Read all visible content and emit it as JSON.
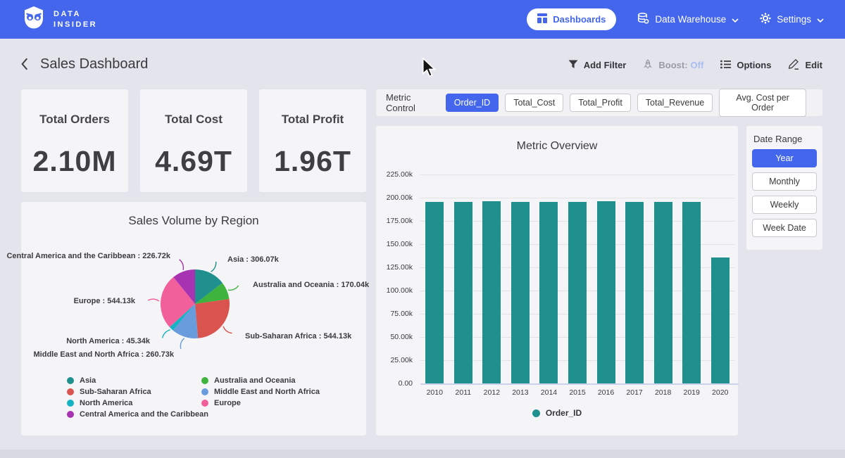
{
  "navbar": {
    "brand_line1": "DATA",
    "brand_line2": "INSIDER",
    "dashboards_label": "Dashboards",
    "data_warehouse_label": "Data Warehouse",
    "settings_label": "Settings"
  },
  "header": {
    "title": "Sales Dashboard",
    "add_filter_label": "Add Filter",
    "boost_label": "Boost:",
    "boost_state": "Off",
    "options_label": "Options",
    "edit_label": "Edit"
  },
  "kpis": [
    {
      "label": "Total Orders",
      "value": "2.10M"
    },
    {
      "label": "Total Cost",
      "value": "4.69T"
    },
    {
      "label": "Total Profit",
      "value": "1.96T"
    }
  ],
  "metric_control": {
    "label": "Metric Control",
    "options": [
      {
        "label": "Order_ID",
        "selected": true
      },
      {
        "label": "Total_Cost",
        "selected": false
      },
      {
        "label": "Total_Profit",
        "selected": false
      },
      {
        "label": "Total_Revenue",
        "selected": false
      },
      {
        "label": "Avg. Cost per Order",
        "selected": false
      }
    ]
  },
  "date_range": {
    "label": "Date Range",
    "options": [
      {
        "label": "Year",
        "selected": true
      },
      {
        "label": "Monthly",
        "selected": false
      },
      {
        "label": "Weekly",
        "selected": false
      },
      {
        "label": "Week Date",
        "selected": false
      }
    ]
  },
  "chart_data": [
    {
      "type": "pie",
      "title": "Sales Volume by Region",
      "unit": "thousands",
      "slices": [
        {
          "name": "Asia",
          "value": 306.07,
          "display": "Asia : 306.07k",
          "color": "#20908e"
        },
        {
          "name": "Australia and Oceania",
          "value": 170.04,
          "display": "Australia and Oceania : 170.04k",
          "color": "#3eb33d"
        },
        {
          "name": "Sub-Saharan Africa",
          "value": 544.13,
          "display": "Sub-Saharan Africa : 544.13k",
          "color": "#d9534f"
        },
        {
          "name": "Middle East and North Africa",
          "value": 260.73,
          "display": "Middle East and North Africa : 260.73k",
          "color": "#689cdc"
        },
        {
          "name": "North America",
          "value": 45.34,
          "display": "North America : 45.34k",
          "color": "#16b3c4"
        },
        {
          "name": "Europe",
          "value": 544.13,
          "display": "Europe : 544.13k",
          "color": "#f2609c"
        },
        {
          "name": "Central America and the Caribbean",
          "value": 226.72,
          "display": "Central America and the Caribbean : 226.72k",
          "color": "#a733b3"
        }
      ],
      "legend_position": "bottom"
    },
    {
      "type": "bar",
      "title": "Metric Overview",
      "categories": [
        "2010",
        "2011",
        "2012",
        "2013",
        "2014",
        "2015",
        "2016",
        "2017",
        "2018",
        "2019",
        "2020"
      ],
      "values": [
        195.6,
        195.6,
        196.3,
        195.5,
        195.5,
        195.6,
        196.3,
        195.6,
        195.5,
        195.6,
        135.9
      ],
      "unit": "thousands",
      "series_name": "Order_ID",
      "bar_color": "#20908e",
      "ylim": [
        0,
        225
      ],
      "y_ticks": [
        "225.00k",
        "200.00k",
        "175.00k",
        "150.00k",
        "125.00k",
        "100.00k",
        "75.00k",
        "50.00k",
        "25.00k",
        "0.00"
      ],
      "grid": true,
      "legend_position": "bottom"
    }
  ]
}
